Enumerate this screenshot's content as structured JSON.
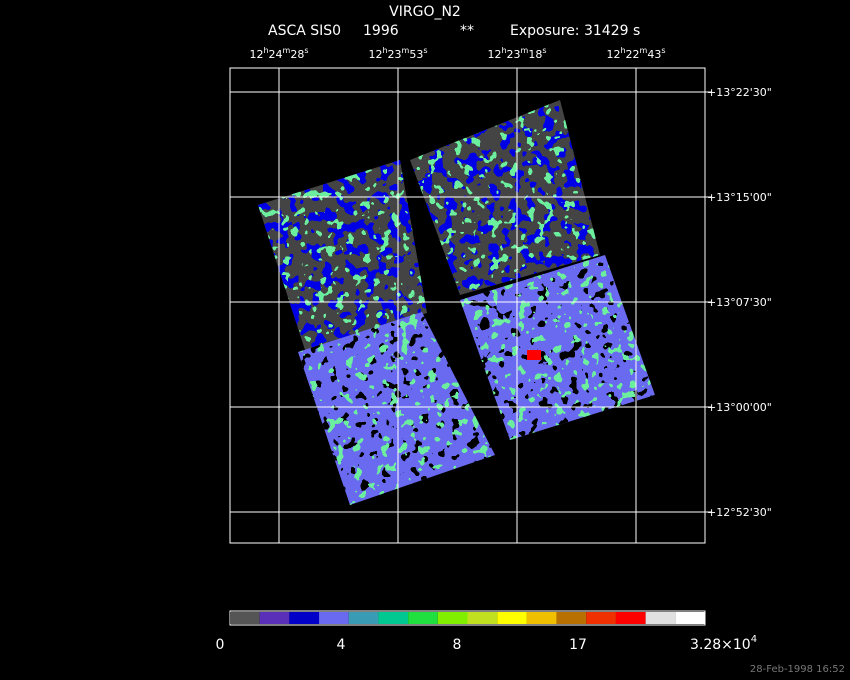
{
  "header": {
    "title": "VIRGO_N2",
    "instrument": "ASCA SIS0",
    "year": "1996",
    "marker": "**",
    "exposure": "Exposure: 31429 s"
  },
  "ra_labels": [
    [
      "12",
      "h",
      "24",
      "m",
      "28",
      "s"
    ],
    [
      "12",
      "h",
      "23",
      "m",
      "53",
      "s"
    ],
    [
      "12",
      "h",
      "23",
      "m",
      "18",
      "s"
    ],
    [
      "12",
      "h",
      "22",
      "m",
      "43",
      "s"
    ]
  ],
  "dec_labels": [
    "+13°22'30\"",
    "+13°15'00\"",
    "+13°07'30\"",
    "+13°00'00\"",
    "+12°52'30\""
  ],
  "colorbar": {
    "colors": [
      "#555555",
      "#5a30b8",
      "#0000c8",
      "#6a6af0",
      "#3a9cb4",
      "#00c890",
      "#20e040",
      "#80f000",
      "#c0e020",
      "#ffff00",
      "#f0c000",
      "#b87000",
      "#f03000",
      "#ff0000",
      "#e0e0e0",
      "#ffffff"
    ],
    "labels": [
      "0",
      "4",
      "8",
      "17"
    ],
    "max_label": [
      "3.28×10",
      "4"
    ]
  },
  "timestamp": "28-Feb-1998 16:52"
}
